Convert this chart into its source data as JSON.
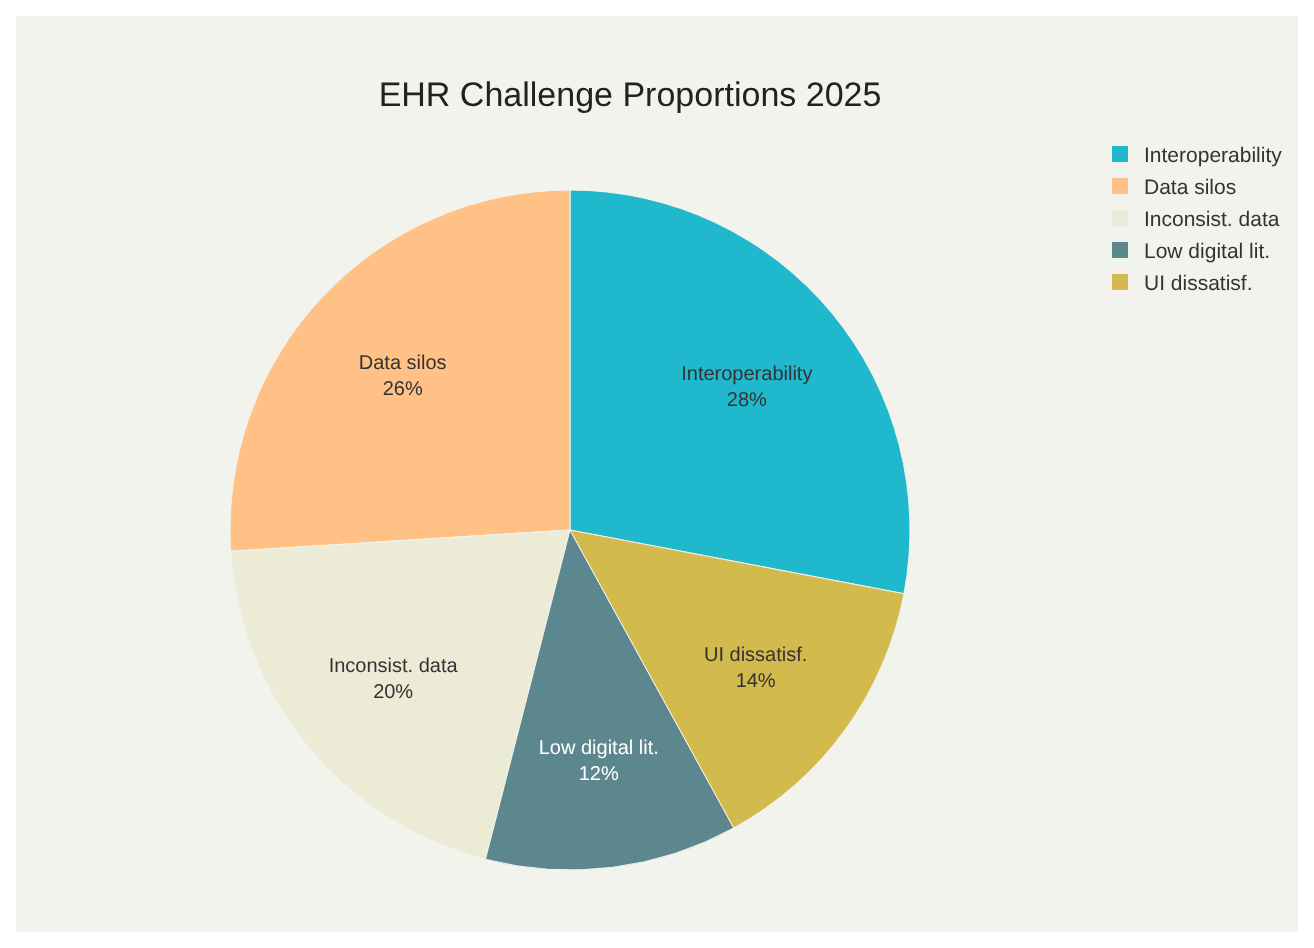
{
  "chart_data": {
    "type": "pie",
    "title": "EHR Challenge Proportions 2025",
    "categories": [
      "Interoperability",
      "Data silos",
      "Inconsist. data",
      "Low digital lit.",
      "UI dissatisf."
    ],
    "values": [
      28,
      26,
      20,
      12,
      14
    ],
    "value_labels": [
      "28%",
      "26%",
      "20%",
      "12%",
      "14%"
    ],
    "colors": [
      "#1fb8cd",
      "#ffc185",
      "#ecebd5",
      "#5d878f",
      "#d2ba4c"
    ],
    "legend": "top right"
  }
}
